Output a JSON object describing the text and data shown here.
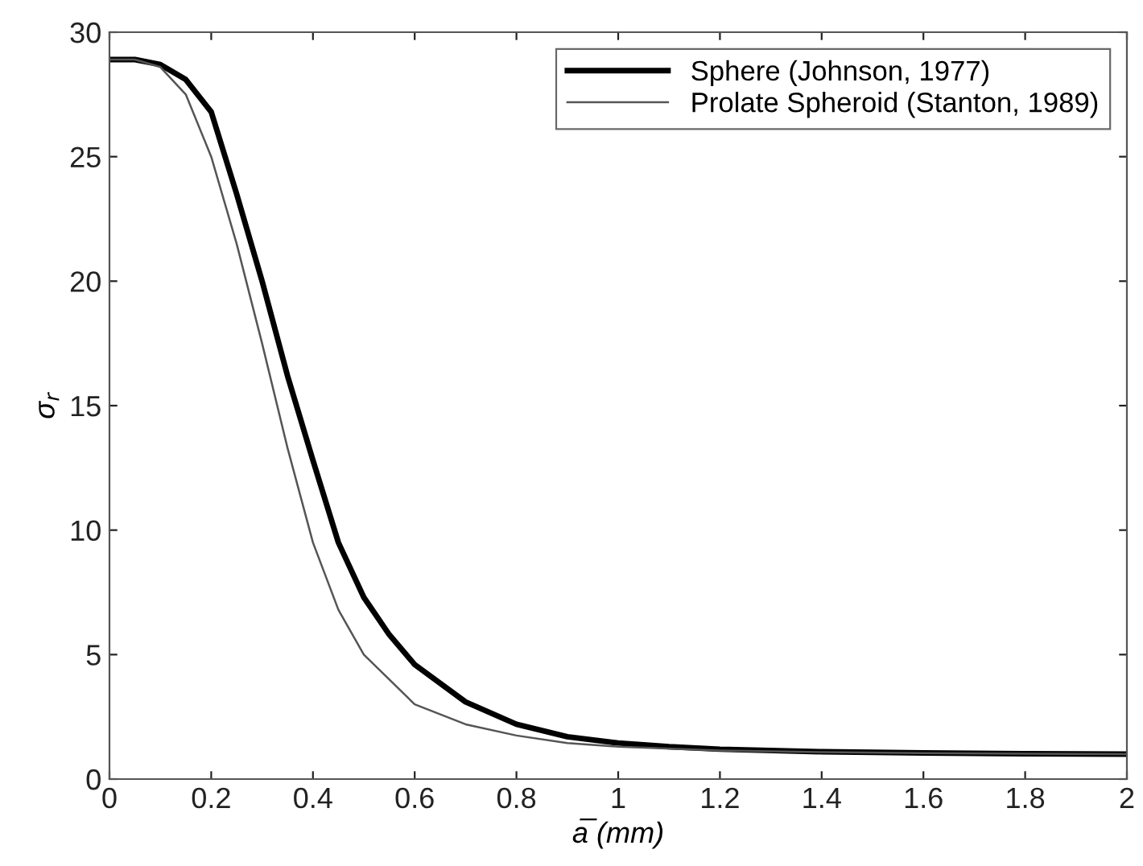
{
  "chart_data": {
    "type": "line",
    "xlabel": "a̅ (mm)",
    "ylabel": "σ$_{r}$",
    "xlim": [
      0,
      2
    ],
    "ylim": [
      0,
      30
    ],
    "xticks": [
      0,
      0.2,
      0.4,
      0.6,
      0.8,
      1,
      1.2,
      1.4,
      1.6,
      1.8,
      2
    ],
    "yticks": [
      0,
      5,
      10,
      15,
      20,
      25,
      30
    ],
    "legend": "top right",
    "grid": false,
    "marker": "none",
    "line_style": "solid",
    "series": [
      {
        "name": "Sphere (Johnson, 1977)",
        "color": "#000000",
        "x": [
          0,
          0.05,
          0.1,
          0.15,
          0.2,
          0.25,
          0.3,
          0.35,
          0.4,
          0.45,
          0.5,
          0.55,
          0.6,
          0.7,
          0.8,
          0.9,
          1.0,
          1.1,
          1.2,
          1.4,
          1.6,
          1.8,
          2.0
        ],
        "values": [
          28.9,
          28.9,
          28.7,
          28.1,
          26.8,
          23.5,
          20,
          16.2,
          12.8,
          9.5,
          7.3,
          5.8,
          4.6,
          3.1,
          2.2,
          1.7,
          1.45,
          1.3,
          1.2,
          1.1,
          1.05,
          1.02,
          1.0
        ]
      },
      {
        "name": "Prolate Spheroid (Stanton, 1989)",
        "color": "#555555",
        "x": [
          0,
          0.05,
          0.1,
          0.15,
          0.2,
          0.25,
          0.3,
          0.35,
          0.4,
          0.45,
          0.5,
          0.6,
          0.7,
          0.8,
          0.9,
          1.0,
          1.2,
          1.4,
          1.6,
          1.8,
          2.0
        ],
        "values": [
          28.9,
          28.9,
          28.6,
          27.5,
          25,
          21.5,
          17.5,
          13.3,
          9.5,
          6.8,
          5.0,
          3.0,
          2.2,
          1.75,
          1.45,
          1.3,
          1.15,
          1.08,
          1.04,
          1.02,
          1.0
        ]
      }
    ]
  }
}
